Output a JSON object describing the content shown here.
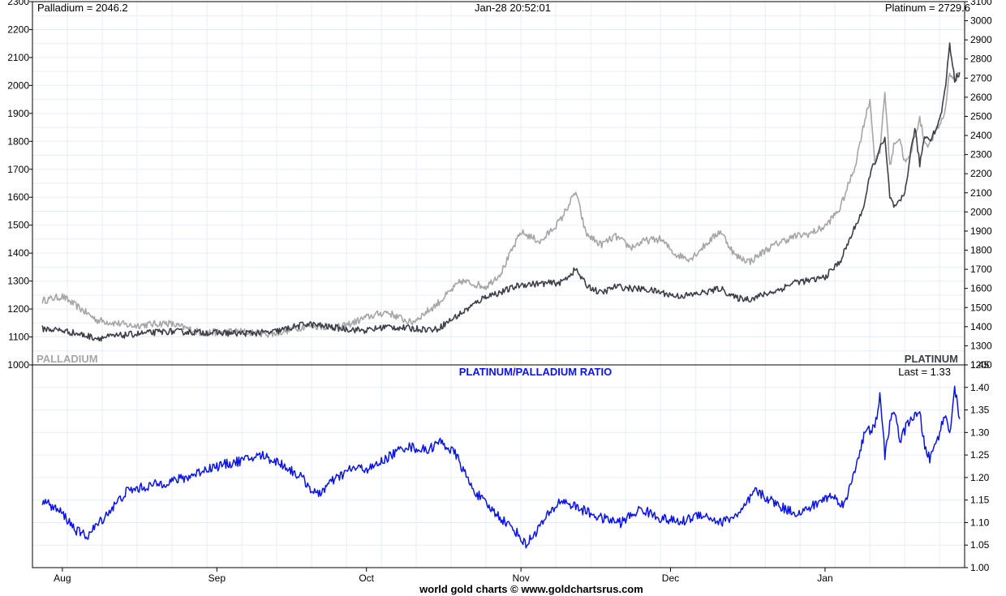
{
  "header": {
    "left_readout": "Palladium = 2046.2",
    "timestamp": "Jan-28  20:52:01",
    "right_readout": "Platinum = 2729.6"
  },
  "footer": {
    "credit": "world gold charts © www.goldchartsrus.com"
  },
  "colors": {
    "palladium": "#a6a6a6",
    "platinum": "#3c3f48",
    "ratio": "#0a14e6",
    "grid": "#e6eef5",
    "axis": "#000000"
  },
  "chart_data": [
    {
      "type": "line",
      "panel": "top",
      "corner_labels": {
        "left": "PALLADIUM",
        "right": "PLATINUM"
      },
      "x_ticks": [
        "Aug",
        "Sep",
        "Oct",
        "Nov",
        "Dec",
        "Jan"
      ],
      "left_axis": {
        "series": "Palladium",
        "range": [
          1000,
          2300
        ],
        "ticks": [
          1000,
          1100,
          1200,
          1300,
          1400,
          1500,
          1600,
          1700,
          1800,
          1900,
          2000,
          2100,
          2200,
          2300
        ]
      },
      "right_axis": {
        "series": "Platinum",
        "range": [
          1200,
          3100
        ],
        "ticks": [
          1200,
          1300,
          1400,
          1500,
          1600,
          1700,
          1800,
          1900,
          2000,
          2100,
          2200,
          2300,
          2400,
          2500,
          2600,
          2700,
          2800,
          2900,
          3000,
          3100
        ]
      },
      "series": [
        {
          "name": "Palladium",
          "axis": "left",
          "points": [
            [
              "Jul-28",
              1230
            ],
            [
              "Aug-01",
              1245
            ],
            [
              "Aug-08",
              1160
            ],
            [
              "Aug-15",
              1140
            ],
            [
              "Aug-22",
              1150
            ],
            [
              "Aug-29",
              1115
            ],
            [
              "Sep-05",
              1120
            ],
            [
              "Sep-12",
              1110
            ],
            [
              "Sep-19",
              1140
            ],
            [
              "Sep-26",
              1135
            ],
            [
              "Oct-01",
              1170
            ],
            [
              "Oct-05",
              1190
            ],
            [
              "Oct-10",
              1150
            ],
            [
              "Oct-15",
              1215
            ],
            [
              "Oct-20",
              1300
            ],
            [
              "Oct-25",
              1280
            ],
            [
              "Oct-28",
              1330
            ],
            [
              "Nov-01",
              1475
            ],
            [
              "Nov-05",
              1440
            ],
            [
              "Nov-09",
              1520
            ],
            [
              "Nov-12",
              1620
            ],
            [
              "Nov-14",
              1470
            ],
            [
              "Nov-17",
              1430
            ],
            [
              "Nov-20",
              1460
            ],
            [
              "Nov-23",
              1420
            ],
            [
              "Nov-26",
              1445
            ],
            [
              "Nov-29",
              1450
            ],
            [
              "Dec-02",
              1395
            ],
            [
              "Dec-05",
              1380
            ],
            [
              "Dec-08",
              1430
            ],
            [
              "Dec-11",
              1480
            ],
            [
              "Dec-14",
              1390
            ],
            [
              "Dec-17",
              1370
            ],
            [
              "Dec-20",
              1410
            ],
            [
              "Dec-23",
              1440
            ],
            [
              "Dec-26",
              1460
            ],
            [
              "Dec-29",
              1470
            ],
            [
              "Jan-01",
              1495
            ],
            [
              "Jan-04",
              1560
            ],
            [
              "Jan-07",
              1710
            ],
            [
              "Jan-09",
              1880
            ],
            [
              "Jan-10",
              1950
            ],
            [
              "Jan-11",
              1730
            ],
            [
              "Jan-12",
              1760
            ],
            [
              "Jan-13",
              1980
            ],
            [
              "Jan-14",
              1710
            ],
            [
              "Jan-15",
              1800
            ],
            [
              "Jan-16",
              1810
            ],
            [
              "Jan-17",
              1725
            ],
            [
              "Jan-18",
              1740
            ],
            [
              "Jan-19",
              1820
            ],
            [
              "Jan-20",
              1880
            ],
            [
              "Jan-21",
              1795
            ],
            [
              "Jan-22",
              1790
            ],
            [
              "Jan-23",
              1830
            ],
            [
              "Jan-24",
              1860
            ],
            [
              "Jan-25",
              1900
            ],
            [
              "Jan-26",
              2050
            ],
            [
              "Jan-27",
              2015
            ],
            [
              "Jan-28",
              2046.2
            ]
          ]
        },
        {
          "name": "Platinum",
          "axis": "right",
          "points": [
            [
              "Jul-28",
              1390
            ],
            [
              "Aug-01",
              1380
            ],
            [
              "Aug-08",
              1340
            ],
            [
              "Aug-15",
              1360
            ],
            [
              "Aug-22",
              1375
            ],
            [
              "Aug-29",
              1370
            ],
            [
              "Sep-05",
              1365
            ],
            [
              "Sep-12",
              1370
            ],
            [
              "Sep-19",
              1415
            ],
            [
              "Sep-26",
              1390
            ],
            [
              "Oct-01",
              1380
            ],
            [
              "Oct-05",
              1400
            ],
            [
              "Oct-10",
              1390
            ],
            [
              "Oct-15",
              1385
            ],
            [
              "Oct-20",
              1470
            ],
            [
              "Oct-25",
              1560
            ],
            [
              "Oct-28",
              1580
            ],
            [
              "Nov-01",
              1620
            ],
            [
              "Nov-05",
              1625
            ],
            [
              "Nov-09",
              1630
            ],
            [
              "Nov-12",
              1700
            ],
            [
              "Nov-14",
              1620
            ],
            [
              "Nov-17",
              1575
            ],
            [
              "Nov-20",
              1610
            ],
            [
              "Nov-23",
              1600
            ],
            [
              "Nov-26",
              1595
            ],
            [
              "Nov-29",
              1580
            ],
            [
              "Dec-02",
              1560
            ],
            [
              "Dec-05",
              1565
            ],
            [
              "Dec-08",
              1580
            ],
            [
              "Dec-11",
              1600
            ],
            [
              "Dec-14",
              1550
            ],
            [
              "Dec-17",
              1545
            ],
            [
              "Dec-20",
              1570
            ],
            [
              "Dec-23",
              1595
            ],
            [
              "Dec-26",
              1635
            ],
            [
              "Dec-29",
              1640
            ],
            [
              "Jan-01",
              1660
            ],
            [
              "Jan-04",
              1740
            ],
            [
              "Jan-07",
              1920
            ],
            [
              "Jan-09",
              2040
            ],
            [
              "Jan-10",
              2200
            ],
            [
              "Jan-11",
              2260
            ],
            [
              "Jan-12",
              2330
            ],
            [
              "Jan-13",
              2380
            ],
            [
              "Jan-14",
              2080
            ],
            [
              "Jan-15",
              2020
            ],
            [
              "Jan-16",
              2050
            ],
            [
              "Jan-17",
              2100
            ],
            [
              "Jan-18",
              2280
            ],
            [
              "Jan-19",
              2440
            ],
            [
              "Jan-20",
              2250
            ],
            [
              "Jan-21",
              2400
            ],
            [
              "Jan-22",
              2380
            ],
            [
              "Jan-23",
              2420
            ],
            [
              "Jan-24",
              2480
            ],
            [
              "Jan-25",
              2620
            ],
            [
              "Jan-26",
              2880
            ],
            [
              "Jan-27",
              2690
            ],
            [
              "Jan-28",
              2729.6
            ]
          ]
        }
      ]
    },
    {
      "type": "line",
      "panel": "bottom",
      "title": "PLATINUM/PALLADIUM RATIO",
      "last_label": "Last = 1.33",
      "x_ticks": [
        "Aug",
        "Sep",
        "Oct",
        "Nov",
        "Dec",
        "Jan"
      ],
      "y_axis": {
        "range": [
          1.0,
          1.45
        ],
        "ticks": [
          1.0,
          1.05,
          1.1,
          1.15,
          1.2,
          1.25,
          1.3,
          1.35,
          1.4,
          1.45
        ]
      },
      "series": [
        {
          "name": "Ratio",
          "points": [
            [
              "Jul-28",
              1.15
            ],
            [
              "Aug-01",
              1.12
            ],
            [
              "Aug-04",
              1.08
            ],
            [
              "Aug-06",
              1.07
            ],
            [
              "Aug-10",
              1.12
            ],
            [
              "Aug-14",
              1.17
            ],
            [
              "Aug-18",
              1.18
            ],
            [
              "Aug-22",
              1.19
            ],
            [
              "Aug-26",
              1.2
            ],
            [
              "Aug-30",
              1.22
            ],
            [
              "Sep-03",
              1.23
            ],
            [
              "Sep-07",
              1.24
            ],
            [
              "Sep-10",
              1.25
            ],
            [
              "Sep-14",
              1.23
            ],
            [
              "Sep-18",
              1.2
            ],
            [
              "Sep-21",
              1.16
            ],
            [
              "Sep-24",
              1.19
            ],
            [
              "Sep-28",
              1.22
            ],
            [
              "Oct-02",
              1.22
            ],
            [
              "Oct-06",
              1.25
            ],
            [
              "Oct-09",
              1.27
            ],
            [
              "Oct-13",
              1.26
            ],
            [
              "Oct-16",
              1.28
            ],
            [
              "Oct-19",
              1.25
            ],
            [
              "Oct-22",
              1.18
            ],
            [
              "Oct-25",
              1.14
            ],
            [
              "Oct-28",
              1.11
            ],
            [
              "Oct-31",
              1.08
            ],
            [
              "Nov-02",
              1.05
            ],
            [
              "Nov-06",
              1.11
            ],
            [
              "Nov-09",
              1.15
            ],
            [
              "Nov-13",
              1.13
            ],
            [
              "Nov-17",
              1.11
            ],
            [
              "Nov-21",
              1.1
            ],
            [
              "Nov-25",
              1.13
            ],
            [
              "Nov-29",
              1.11
            ],
            [
              "Dec-03",
              1.1
            ],
            [
              "Dec-07",
              1.12
            ],
            [
              "Dec-11",
              1.1
            ],
            [
              "Dec-15",
              1.12
            ],
            [
              "Dec-18",
              1.17
            ],
            [
              "Dec-21",
              1.15
            ],
            [
              "Dec-24",
              1.13
            ],
            [
              "Dec-27",
              1.12
            ],
            [
              "Dec-30",
              1.14
            ],
            [
              "Jan-02",
              1.16
            ],
            [
              "Jan-05",
              1.14
            ],
            [
              "Jan-07",
              1.22
            ],
            [
              "Jan-09",
              1.3
            ],
            [
              "Jan-11",
              1.31
            ],
            [
              "Jan-12",
              1.38
            ],
            [
              "Jan-13",
              1.25
            ],
            [
              "Jan-14",
              1.32
            ],
            [
              "Jan-15",
              1.35
            ],
            [
              "Jan-16",
              1.28
            ],
            [
              "Jan-18",
              1.33
            ],
            [
              "Jan-20",
              1.34
            ],
            [
              "Jan-21",
              1.27
            ],
            [
              "Jan-22",
              1.24
            ],
            [
              "Jan-24",
              1.3
            ],
            [
              "Jan-25",
              1.34
            ],
            [
              "Jan-26",
              1.3
            ],
            [
              "Jan-27",
              1.4
            ],
            [
              "Jan-28",
              1.33
            ]
          ]
        }
      ]
    }
  ]
}
